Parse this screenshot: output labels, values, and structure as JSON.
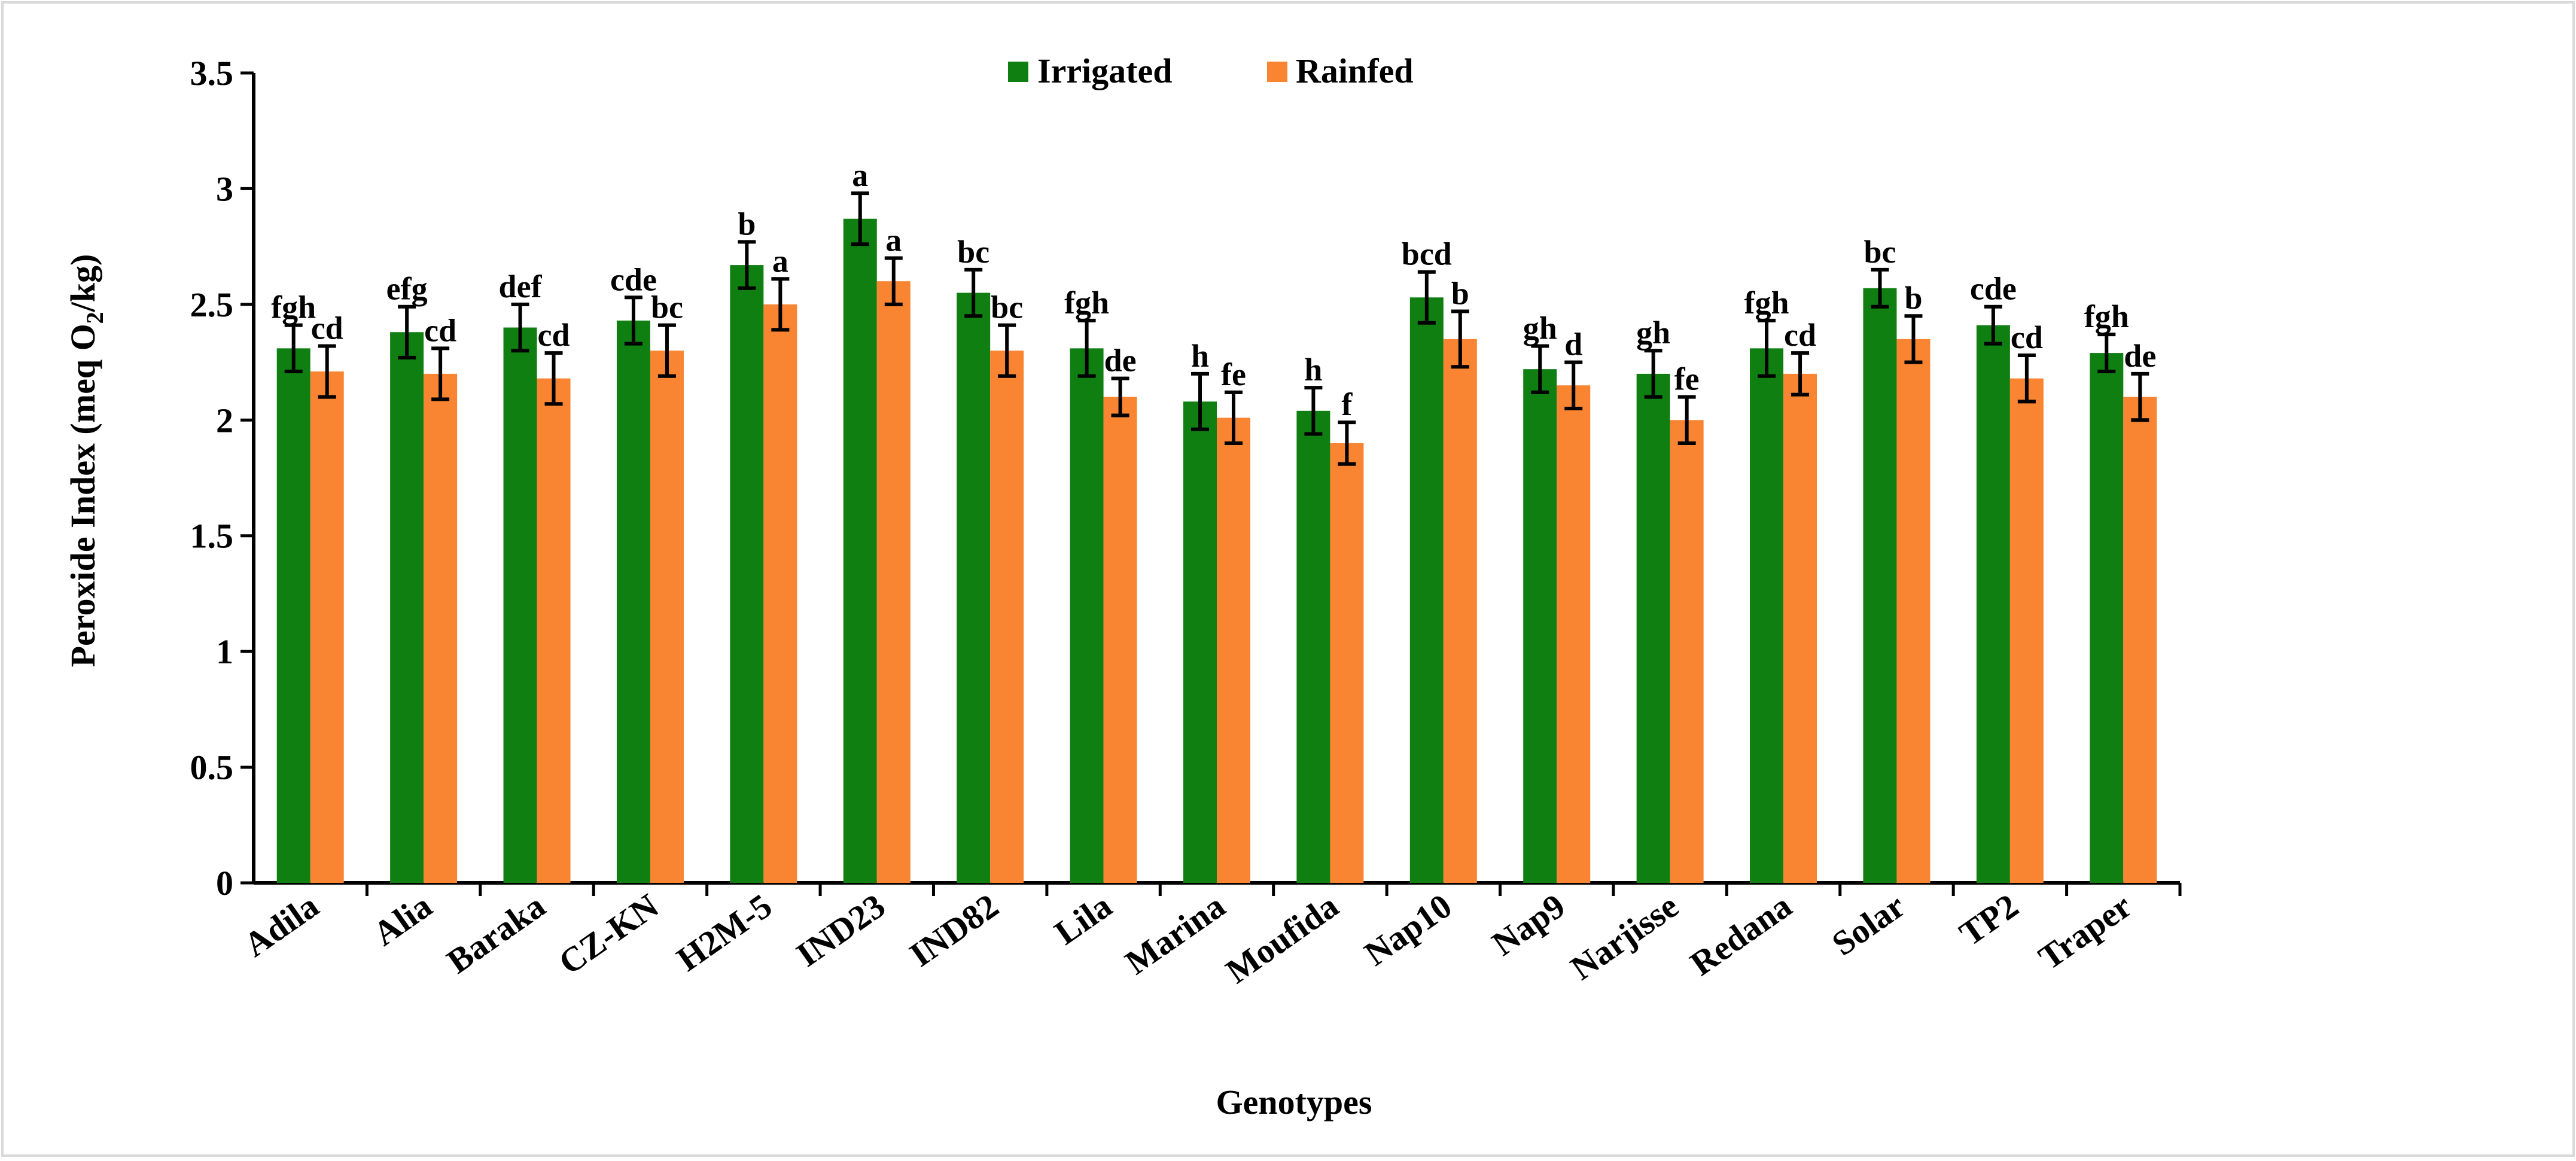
{
  "colors": {
    "irrigated": "#0f7f12",
    "rainfed": "#f98432",
    "axis": "#000000",
    "frame": "#d9d9d9",
    "background": "#ffffff"
  },
  "chart_data": {
    "type": "bar",
    "title": "",
    "xlabel": "Genotypes",
    "ylabel_main": "Peroxide Index (meq O",
    "ylabel_sub": "2",
    "ylabel_end": "/kg)",
    "ylim": [
      0,
      3.5
    ],
    "yticks": [
      "0",
      "0.5",
      "1",
      "1.5",
      "2",
      "2.5",
      "3",
      "3.5"
    ],
    "grid": false,
    "legend_position": "top-center",
    "categories": [
      "Adila",
      "Alia",
      "Baraka",
      "CZ-KN",
      "H2M-5",
      "IND23",
      "IND82",
      "Lila",
      "Marina",
      "Moufida",
      "Nap10",
      "Nap9",
      "Narjisse",
      "Redana",
      "Solar",
      "TP2",
      "Traper"
    ],
    "series": [
      {
        "name": "Irrigated",
        "values": [
          2.31,
          2.38,
          2.4,
          2.43,
          2.67,
          2.87,
          2.55,
          2.31,
          2.08,
          2.04,
          2.53,
          2.22,
          2.2,
          2.31,
          2.57,
          2.41,
          2.29
        ],
        "errors": [
          0.1,
          0.11,
          0.1,
          0.1,
          0.1,
          0.11,
          0.1,
          0.12,
          0.12,
          0.1,
          0.11,
          0.1,
          0.1,
          0.12,
          0.08,
          0.08,
          0.08
        ],
        "letters": [
          "fgh",
          "efg",
          "def",
          "cde",
          "b",
          "a",
          "bc",
          "fgh",
          "h",
          "h",
          "bcd",
          "gh",
          "gh",
          "fgh",
          "bc",
          "cde",
          "fgh"
        ]
      },
      {
        "name": "Rainfed",
        "values": [
          2.21,
          2.2,
          2.18,
          2.3,
          2.5,
          2.6,
          2.3,
          2.1,
          2.01,
          1.9,
          2.35,
          2.15,
          2.0,
          2.2,
          2.35,
          2.18,
          2.1
        ],
        "errors": [
          0.11,
          0.11,
          0.11,
          0.11,
          0.11,
          0.1,
          0.11,
          0.08,
          0.11,
          0.09,
          0.12,
          0.1,
          0.1,
          0.09,
          0.1,
          0.1,
          0.1
        ],
        "letters": [
          "cd",
          "cd",
          "cd",
          "bc",
          "a",
          "a",
          "bc",
          "de",
          "fe",
          "f",
          "b",
          "d",
          "fe",
          "cd",
          "b",
          "cd",
          "de"
        ]
      }
    ]
  }
}
